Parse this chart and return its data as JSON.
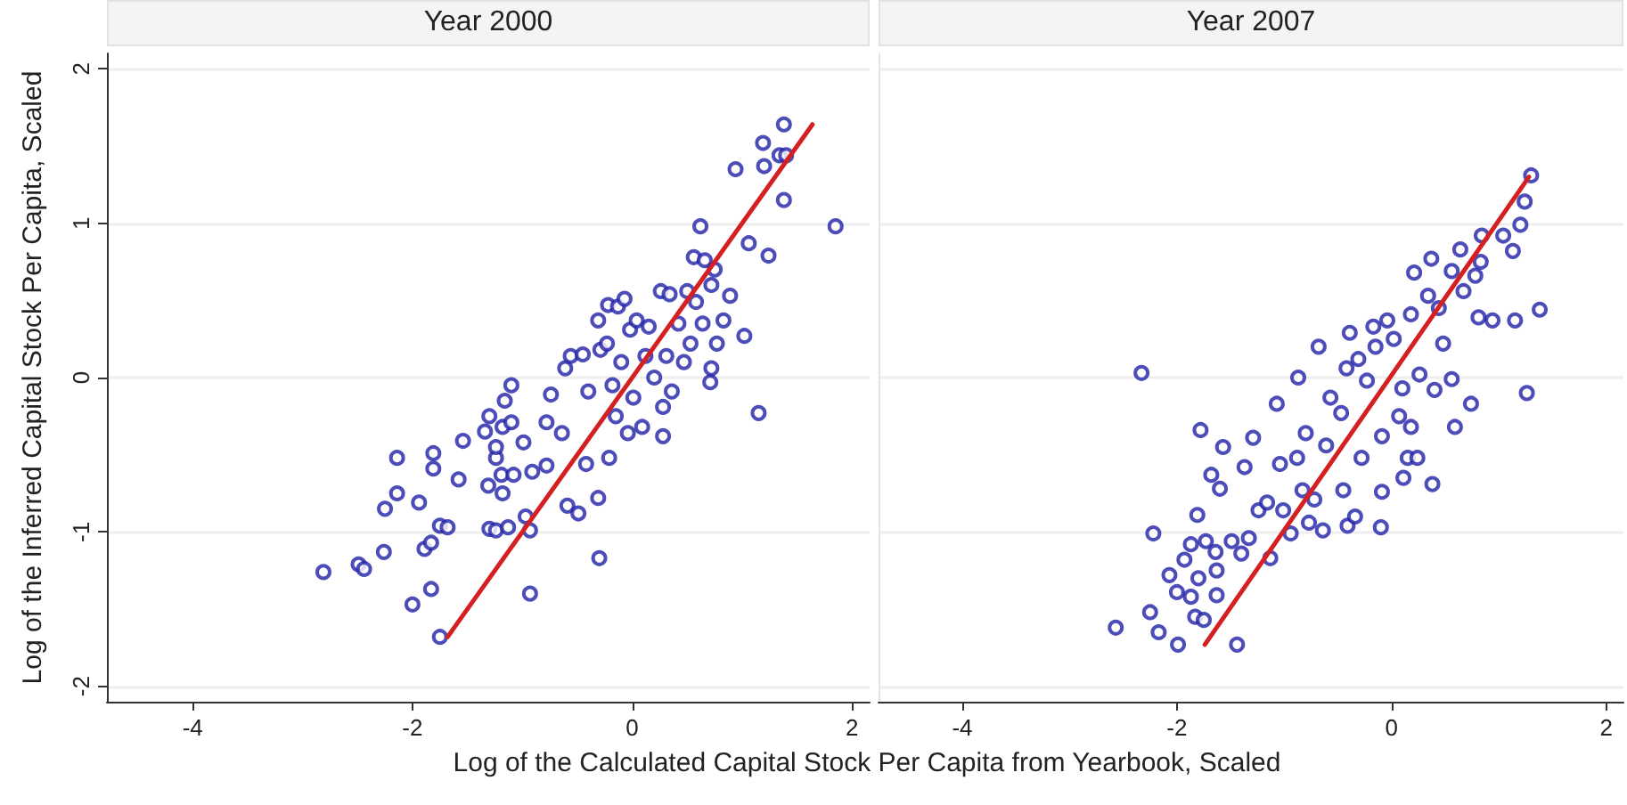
{
  "chart_data": [
    {
      "type": "scatter",
      "title": "Year 2000",
      "ylabel": "Log of the Inferred Capital Stock Per Capita, Scaled",
      "xlabel": "Log of the Calculated Capital Stock Per Capita from Yearbook, Scaled",
      "xlim": [
        -4.78,
        2.16
      ],
      "ylim": [
        -2.1,
        2.1
      ],
      "xticks": [
        -4,
        -2,
        0,
        2
      ],
      "yticks": [
        -2,
        -1,
        0,
        1,
        2
      ],
      "grid": "y",
      "marker": "circle",
      "series": [
        {
          "type": "scatter",
          "color": "#2020a8",
          "x": [
            -2.81,
            -2.49,
            -2.44,
            -2.26,
            -2.25,
            -2.14,
            -2.14,
            -2.0,
            -1.94,
            -1.89,
            -1.83,
            -1.83,
            -1.81,
            -1.81,
            -1.75,
            -1.68,
            -1.75,
            -1.58,
            -1.54,
            -1.34,
            -1.3,
            -1.31,
            -1.3,
            -1.24,
            -1.24,
            -1.24,
            -1.19,
            -1.18,
            -1.18,
            -1.16,
            -1.13,
            -1.1,
            -1.1,
            -1.08,
            -0.99,
            -0.97,
            -0.93,
            -0.93,
            -0.91,
            -0.78,
            -0.78,
            -0.74,
            -0.64,
            -0.61,
            -0.59,
            -0.56,
            -0.49,
            -0.45,
            -0.42,
            -0.4,
            -0.31,
            -0.3,
            -0.31,
            -0.29,
            -0.23,
            -0.22,
            -0.21,
            -0.18,
            -0.15,
            -0.13,
            -0.1,
            -0.07,
            -0.04,
            -0.02,
            0.01,
            0.04,
            0.09,
            0.12,
            0.15,
            0.2,
            0.26,
            0.28,
            0.28,
            0.31,
            0.34,
            0.36,
            0.42,
            0.47,
            0.5,
            0.53,
            0.56,
            0.58,
            0.62,
            0.64,
            0.66,
            0.71,
            0.72,
            0.72,
            0.75,
            0.77,
            0.83,
            0.89,
            0.94,
            1.02,
            1.06,
            1.15,
            1.19,
            1.2,
            1.24,
            1.34,
            1.38,
            1.38,
            1.4,
            1.85
          ],
          "values": [
            -1.26,
            -1.21,
            -1.24,
            -1.13,
            -0.85,
            -0.75,
            -0.52,
            -1.47,
            -0.81,
            -1.11,
            -1.07,
            -1.37,
            -0.49,
            -0.59,
            -0.96,
            -0.97,
            -1.68,
            -0.66,
            -0.41,
            -0.35,
            -0.25,
            -0.7,
            -0.98,
            -0.99,
            -0.52,
            -0.45,
            -0.63,
            -0.75,
            -0.32,
            -0.15,
            -0.97,
            -0.05,
            -0.29,
            -0.63,
            -0.42,
            -0.9,
            -0.99,
            -1.4,
            -0.61,
            -0.57,
            -0.29,
            -0.11,
            -0.36,
            0.06,
            -0.83,
            0.14,
            -0.88,
            0.15,
            -0.56,
            -0.09,
            0.37,
            -1.17,
            -0.78,
            0.18,
            0.22,
            0.47,
            -0.52,
            -0.05,
            -0.25,
            0.46,
            0.1,
            0.51,
            -0.36,
            0.31,
            -0.13,
            0.37,
            -0.32,
            0.14,
            0.33,
            0.0,
            0.56,
            -0.19,
            -0.38,
            0.14,
            0.54,
            -0.09,
            0.35,
            0.1,
            0.56,
            0.22,
            0.78,
            0.49,
            0.98,
            0.35,
            0.76,
            -0.03,
            0.06,
            0.6,
            0.7,
            0.22,
            0.37,
            0.53,
            1.35,
            0.27,
            0.87,
            -0.23,
            1.52,
            1.37,
            0.79,
            1.44,
            1.64,
            1.15,
            1.44,
            0.98
          ]
        },
        {
          "type": "line",
          "color": "#d42020",
          "marker": "none",
          "x": [
            -1.68,
            1.64
          ],
          "values": [
            -1.68,
            1.64
          ]
        }
      ]
    },
    {
      "type": "scatter",
      "title": "Year 2007",
      "xlim": [
        -4.78,
        2.16
      ],
      "ylim": [
        -2.1,
        2.1
      ],
      "xticks": [
        -4,
        -2,
        0,
        2
      ],
      "yticks": [
        -2,
        -1,
        0,
        1,
        2
      ],
      "grid": "y",
      "marker": "circle",
      "tick_labels": "x",
      "series": [
        {
          "type": "scatter",
          "color": "#2020a8",
          "x": [
            -2.57,
            -2.33,
            -2.25,
            -2.22,
            -2.17,
            -2.07,
            -2.0,
            -1.99,
            -1.93,
            -1.87,
            -1.87,
            -1.83,
            -1.81,
            -1.8,
            -1.78,
            -1.75,
            -1.73,
            -1.68,
            -1.64,
            -1.63,
            -1.63,
            -1.6,
            -1.57,
            -1.49,
            -1.44,
            -1.4,
            -1.37,
            -1.33,
            -1.29,
            -1.24,
            -1.16,
            -1.13,
            -1.07,
            -1.04,
            -1.01,
            -0.94,
            -0.88,
            -0.87,
            -0.83,
            -0.8,
            -0.77,
            -0.72,
            -0.68,
            -0.64,
            -0.61,
            -0.57,
            -0.47,
            -0.45,
            -0.42,
            -0.39,
            -0.41,
            -0.34,
            -0.31,
            -0.28,
            -0.23,
            -0.17,
            -0.15,
            -0.1,
            -0.09,
            -0.09,
            -0.04,
            0.02,
            0.07,
            0.1,
            0.11,
            0.15,
            0.18,
            0.18,
            0.21,
            0.24,
            0.26,
            0.34,
            0.37,
            0.38,
            0.4,
            0.44,
            0.48,
            0.56,
            0.56,
            0.59,
            0.64,
            0.67,
            0.74,
            0.78,
            0.81,
            0.83,
            0.84,
            0.94,
            1.04,
            1.13,
            1.15,
            1.2,
            1.24,
            1.26,
            1.3,
            1.38
          ],
          "values": [
            -1.62,
            0.03,
            -1.52,
            -1.01,
            -1.65,
            -1.28,
            -1.39,
            -1.73,
            -1.18,
            -1.08,
            -1.42,
            -1.55,
            -0.89,
            -1.3,
            -0.34,
            -1.57,
            -1.06,
            -0.63,
            -1.13,
            -1.25,
            -1.41,
            -0.72,
            -0.45,
            -1.06,
            -1.73,
            -1.14,
            -0.58,
            -1.04,
            -0.39,
            -0.86,
            -0.81,
            -1.17,
            -0.17,
            -0.56,
            -0.86,
            -1.01,
            -0.52,
            0.0,
            -0.73,
            -0.36,
            -0.94,
            -0.79,
            0.2,
            -0.99,
            -0.44,
            -0.13,
            -0.23,
            -0.73,
            0.06,
            0.29,
            -0.96,
            -0.9,
            0.12,
            -0.52,
            -0.02,
            0.33,
            0.2,
            -0.97,
            -0.74,
            -0.38,
            0.37,
            0.25,
            -0.25,
            -0.07,
            -0.65,
            -0.52,
            0.41,
            -0.32,
            0.68,
            -0.52,
            0.02,
            0.53,
            0.77,
            -0.69,
            -0.08,
            0.45,
            0.22,
            0.69,
            -0.01,
            -0.32,
            0.83,
            0.56,
            -0.17,
            0.66,
            0.39,
            0.75,
            0.92,
            0.37,
            0.92,
            0.82,
            0.37,
            0.99,
            1.14,
            -0.1,
            1.31,
            0.44
          ]
        },
        {
          "type": "line",
          "color": "#d42020",
          "marker": "none",
          "x": [
            -1.74,
            1.28
          ],
          "values": [
            -1.73,
            1.3
          ]
        }
      ]
    }
  ]
}
